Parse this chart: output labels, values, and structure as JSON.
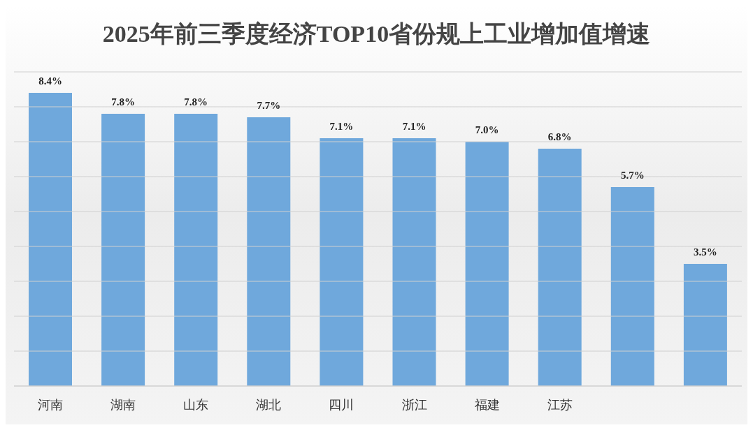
{
  "chart_data": {
    "type": "bar",
    "title": "2025年前三季度经济TOP10省份规上工业增加值增速",
    "categories": [
      "河南",
      "湖南",
      "山东",
      "湖北",
      "四川",
      "浙江",
      "福建",
      "江苏",
      null,
      null
    ],
    "values": [
      8.4,
      7.8,
      7.8,
      7.7,
      7.1,
      7.1,
      7.0,
      6.8,
      5.7,
      3.5
    ],
    "value_labels": [
      "8.4%",
      "7.8%",
      "7.8%",
      "7.7%",
      "7.1%",
      "7.1%",
      "7.0%",
      "6.8%",
      "5.7%",
      "3.5%"
    ],
    "color": "#6fa8dc",
    "ylim": [
      0,
      9
    ],
    "yticks": [
      {
        "value": 0,
        "label": null
      },
      {
        "value": 1,
        "label": null
      },
      {
        "value": 2,
        "label": null
      },
      {
        "value": 3,
        "label": null
      },
      {
        "value": 4,
        "label": null
      },
      {
        "value": 5,
        "label": null
      },
      {
        "value": 6,
        "label": null
      },
      {
        "value": 7,
        "label": null
      },
      {
        "value": 8,
        "label": null
      },
      {
        "value": 9,
        "label": null
      }
    ],
    "grid": "y",
    "tick_labels": "x"
  }
}
